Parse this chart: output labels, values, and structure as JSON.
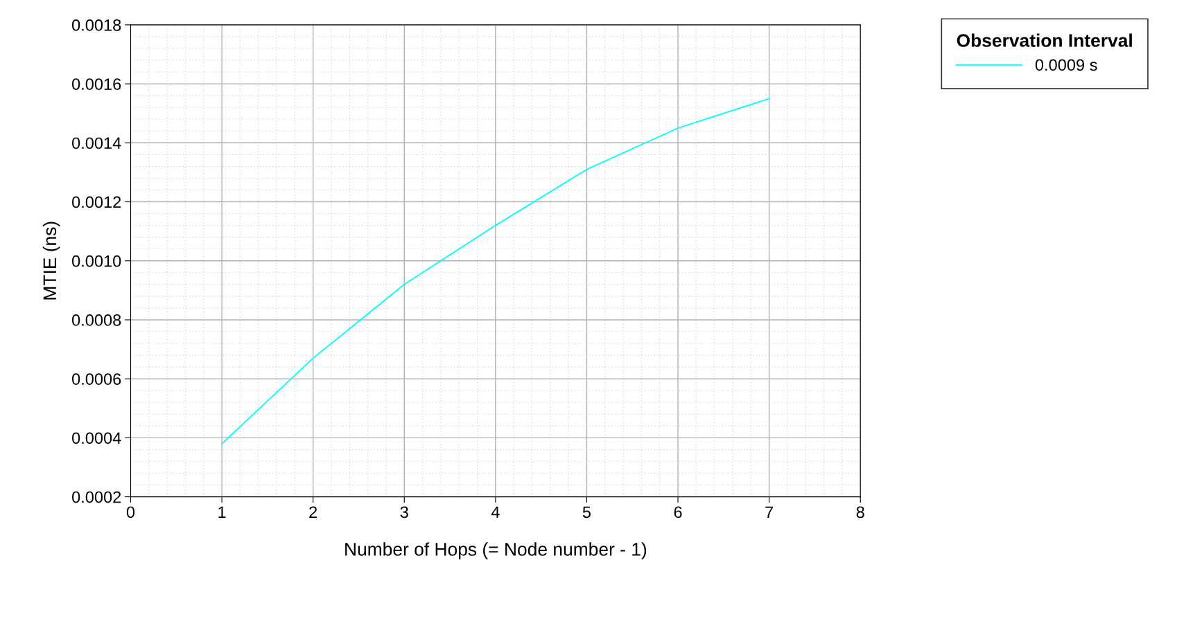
{
  "chart_data": {
    "type": "line",
    "xlabel": "Number of Hops (= Node number - 1)",
    "ylabel": "MTIE (ns)",
    "legend_title": "Observation Interval",
    "legend": "top right",
    "grid": true,
    "marker": "none",
    "line_style": "solid",
    "xlim": [
      0,
      8
    ],
    "xticks": [
      0,
      1,
      2,
      3,
      4,
      5,
      6,
      7,
      8
    ],
    "ylim": [
      0.0002,
      0.0018
    ],
    "yticks": [
      {
        "value": 0.0002,
        "label": "0.0002"
      },
      {
        "value": 0.0004,
        "label": "0.0004"
      },
      {
        "value": 0.0006,
        "label": "0.0006"
      },
      {
        "value": 0.0008,
        "label": "0.0008"
      },
      {
        "value": 0.001,
        "label": "0.0010"
      },
      {
        "value": 0.0012,
        "label": "0.0012"
      },
      {
        "value": 0.0014,
        "label": "0.0014"
      },
      {
        "value": 0.0016,
        "label": "0.0016"
      },
      {
        "value": 0.0018,
        "label": "0.0018"
      }
    ],
    "x": [
      1,
      2,
      3,
      4,
      5,
      6,
      7
    ],
    "series": [
      {
        "name": "0.0009 s",
        "color": "#00ffff",
        "values": [
          0.00038,
          0.00067,
          0.00092,
          0.00112,
          0.00131,
          0.00145,
          0.00155
        ]
      }
    ]
  }
}
